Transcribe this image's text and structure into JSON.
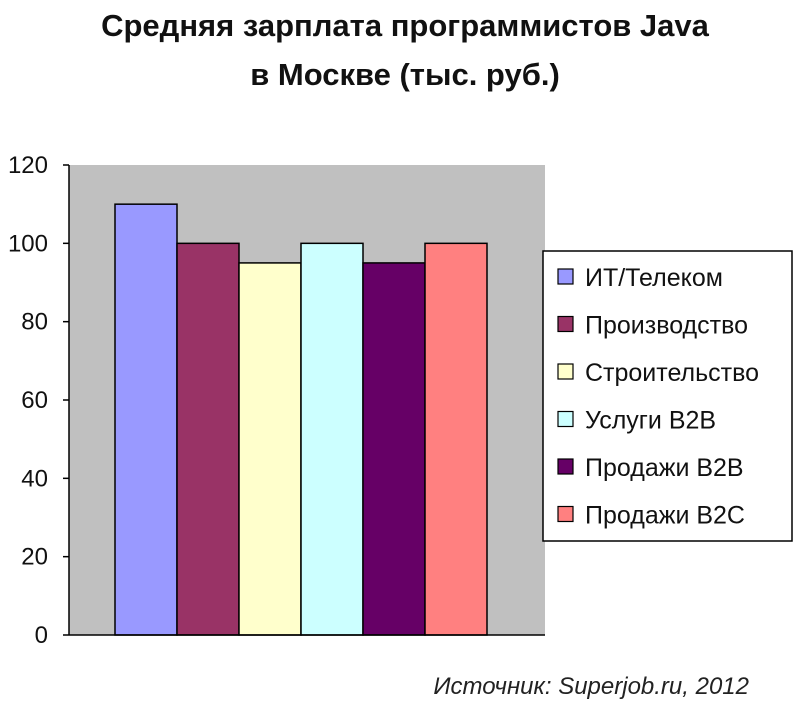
{
  "chart_data": {
    "type": "bar",
    "title": "Средняя зарплата программистов Java в Москве (тыс. руб.)",
    "title_lines": [
      "Средняя зарплата программистов Java",
      "в Москве (тыс. руб.)"
    ],
    "ylim": [
      0,
      120
    ],
    "yticks": [
      "0",
      "20",
      "40",
      "60",
      "80",
      "100",
      "120"
    ],
    "grid": false,
    "legend_position": "right",
    "series": [
      {
        "name": "ИТ/Телеком",
        "value": 110,
        "color": "#9999ff"
      },
      {
        "name": "Производство",
        "value": 100,
        "color": "#993366"
      },
      {
        "name": "Строительство",
        "value": 95,
        "color": "#ffffcc"
      },
      {
        "name": "Услуги B2B",
        "value": 100,
        "color": "#ccffff"
      },
      {
        "name": "Продажи B2B",
        "value": 95,
        "color": "#660066"
      },
      {
        "name": "Продажи B2C",
        "value": 100,
        "color": "#ff8080"
      }
    ],
    "source": "Источник: Superjob.ru, 2012"
  },
  "colors": {
    "plot_background": "#c0c0c0",
    "axis": "#000000",
    "bar_border": "#000000"
  }
}
